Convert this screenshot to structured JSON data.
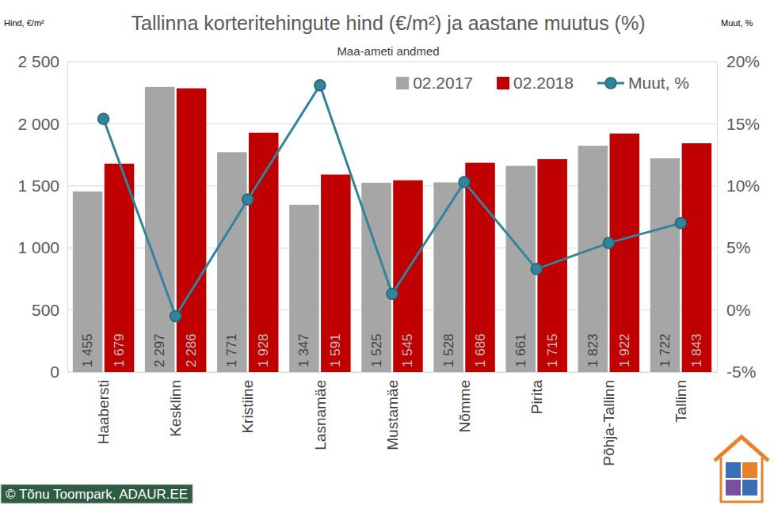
{
  "chart_data": {
    "type": "bar",
    "title": "Tallinna korteritehingute hind (€/m²) ja aastane muutus (%)",
    "subtitle": "Maa-ameti andmed",
    "y_label": "Hind, €/m²",
    "y2_label": "Muut, %",
    "annotations": [
      "© Tõnu Toompark, ADAUR.EE"
    ],
    "categories": [
      "Haabersti",
      "Kesklinn",
      "Kristiine",
      "Lasnamäe",
      "Mustamäe",
      "Nõmme",
      "Pirita",
      "Põhja-Tallinn",
      "Tallinn"
    ],
    "series": [
      {
        "name": "02.2017",
        "type": "bar",
        "color": "#a6a6a6",
        "values": [
          1455,
          2297,
          1771,
          1347,
          1525,
          1528,
          1661,
          1823,
          1722
        ],
        "value_labels": [
          "1 455",
          "2 297",
          "1 771",
          "1 347",
          "1 525",
          "1 528",
          "1 661",
          "1 823",
          "1 722"
        ]
      },
      {
        "name": "02.2018",
        "type": "bar",
        "color": "#c00000",
        "values": [
          1679,
          2286,
          1928,
          1591,
          1545,
          1686,
          1715,
          1922,
          1843
        ],
        "value_labels": [
          "1 679",
          "2 286",
          "1 928",
          "1 591",
          "1 545",
          "1 686",
          "1 715",
          "1 922",
          "1 843"
        ]
      },
      {
        "name": "Muut, %",
        "type": "line",
        "axis": "y2",
        "color": "#31849b",
        "marker": "circle",
        "line_style": "solid",
        "values": [
          15.4,
          -0.5,
          8.9,
          18.1,
          1.3,
          10.3,
          3.3,
          5.4,
          7.0
        ]
      }
    ],
    "ylim": [
      0,
      2500
    ],
    "yticks": [
      0,
      500,
      {
        "value": 1000,
        "label": "1 000"
      },
      {
        "value": 1500,
        "label": "1 500"
      },
      {
        "value": 2000,
        "label": "2 000"
      },
      {
        "value": 2500,
        "label": "2 500"
      }
    ],
    "y2lim": [
      -5,
      20
    ],
    "y2ticks": [
      {
        "value": -5,
        "label": "-5%"
      },
      {
        "value": 0,
        "label": "0%"
      },
      {
        "value": 5,
        "label": "5%"
      },
      {
        "value": 10,
        "label": "10%"
      },
      {
        "value": 15,
        "label": "15%"
      },
      {
        "value": 20,
        "label": "20%"
      }
    ],
    "grid": true,
    "legend": "top-right",
    "data_labels": true
  }
}
